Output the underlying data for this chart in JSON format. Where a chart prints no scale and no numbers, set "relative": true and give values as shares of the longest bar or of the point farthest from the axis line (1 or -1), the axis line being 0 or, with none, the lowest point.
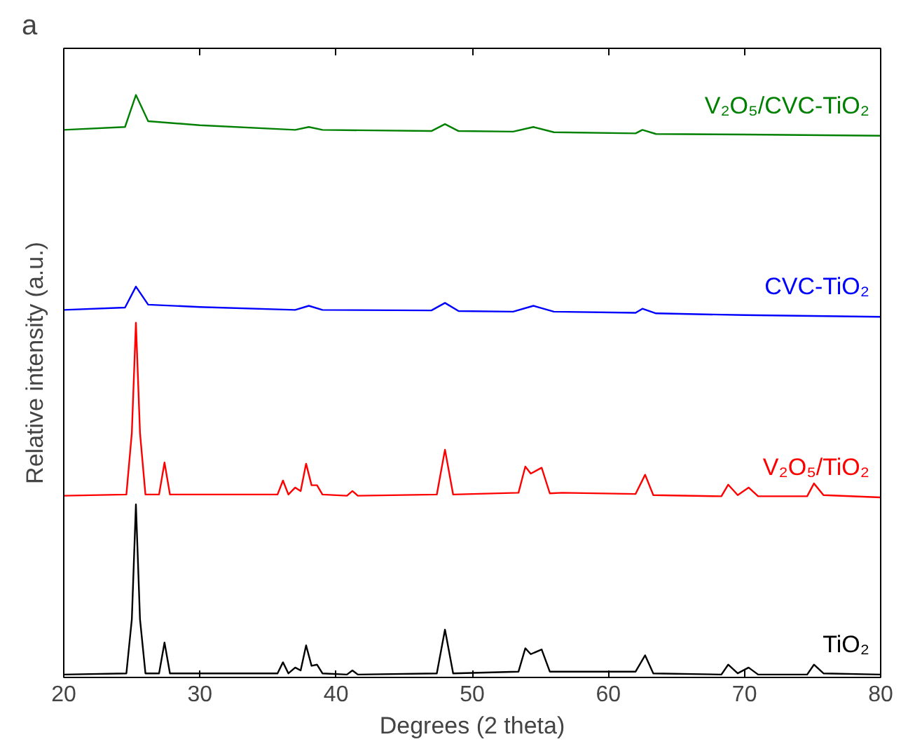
{
  "chart_data": {
    "type": "line",
    "title": "a",
    "xlabel": "Degrees (2 theta)",
    "ylabel": "Relative intensity (a.u.)",
    "relative": true,
    "grid": false,
    "tick_labels": "x",
    "xlim": [
      20,
      80
    ],
    "xticks": [
      20,
      30,
      40,
      50,
      60,
      70,
      80
    ],
    "series": [
      {
        "name": "TiO₂",
        "color": "#000000",
        "x": [
          20,
          24.6,
          25.0,
          25.3,
          25.6,
          26.0,
          27.0,
          27.4,
          27.8,
          35.7,
          36.1,
          36.5,
          37.0,
          37.4,
          37.8,
          38.2,
          38.6,
          39.0,
          40.8,
          41.2,
          41.6,
          47.4,
          48.0,
          48.6,
          53.4,
          53.9,
          54.3,
          55.1,
          55.7,
          56.6,
          62.0,
          62.7,
          63.3,
          68.3,
          68.8,
          69.5,
          70.3,
          71.0,
          74.6,
          75.1,
          75.8,
          80
        ],
        "values": [
          0.005,
          0.007,
          0.1,
          0.297,
          0.1,
          0.007,
          0.007,
          0.06,
          0.007,
          0.007,
          0.026,
          0.007,
          0.017,
          0.012,
          0.055,
          0.02,
          0.022,
          0.007,
          0.005,
          0.012,
          0.005,
          0.007,
          0.082,
          0.007,
          0.01,
          0.05,
          0.04,
          0.048,
          0.01,
          0.01,
          0.01,
          0.038,
          0.007,
          0.005,
          0.022,
          0.007,
          0.017,
          0.005,
          0.005,
          0.022,
          0.007,
          0.005
        ]
      },
      {
        "name": "V₂O₅/TiO₂",
        "color": "#ff0000",
        "x": [
          20,
          24.6,
          25.0,
          25.3,
          25.6,
          26.0,
          27.0,
          27.4,
          27.8,
          35.7,
          36.1,
          36.5,
          37.0,
          37.4,
          37.8,
          38.2,
          38.6,
          39.0,
          40.8,
          41.2,
          41.6,
          47.4,
          48.0,
          48.6,
          53.4,
          53.9,
          54.3,
          55.1,
          55.7,
          56.6,
          62.0,
          62.7,
          63.3,
          68.3,
          68.8,
          69.5,
          70.3,
          71.0,
          74.6,
          75.1,
          75.8,
          80
        ],
        "values": [
          0.312,
          0.314,
          0.42,
          0.609,
          0.42,
          0.314,
          0.314,
          0.369,
          0.314,
          0.314,
          0.338,
          0.314,
          0.326,
          0.32,
          0.367,
          0.33,
          0.33,
          0.314,
          0.312,
          0.32,
          0.312,
          0.314,
          0.391,
          0.314,
          0.317,
          0.362,
          0.35,
          0.36,
          0.316,
          0.317,
          0.315,
          0.348,
          0.313,
          0.311,
          0.331,
          0.313,
          0.326,
          0.311,
          0.311,
          0.333,
          0.313,
          0.309
        ]
      },
      {
        "name": "CVC-TiO₂",
        "color": "#0000ff",
        "x": [
          20,
          24.5,
          25.3,
          26.2,
          30,
          37,
          38,
          39,
          47,
          48,
          49,
          53,
          54.5,
          56,
          62,
          62.5,
          63.5,
          70,
          80
        ],
        "values": [
          0.631,
          0.635,
          0.671,
          0.64,
          0.636,
          0.631,
          0.638,
          0.631,
          0.63,
          0.643,
          0.629,
          0.628,
          0.638,
          0.628,
          0.626,
          0.633,
          0.625,
          0.622,
          0.619
        ]
      },
      {
        "name": "V₂O₅/CVC-TiO₂",
        "color": "#008000",
        "x": [
          20,
          24.5,
          25.3,
          26.2,
          30,
          37,
          38,
          39,
          47,
          48,
          49,
          53,
          54.5,
          56,
          62,
          62.5,
          63.5,
          70,
          80
        ],
        "values": [
          0.94,
          0.945,
          1,
          0.955,
          0.948,
          0.94,
          0.945,
          0.94,
          0.938,
          0.95,
          0.938,
          0.937,
          0.945,
          0.936,
          0.934,
          0.94,
          0.933,
          0.932,
          0.93
        ]
      }
    ]
  }
}
